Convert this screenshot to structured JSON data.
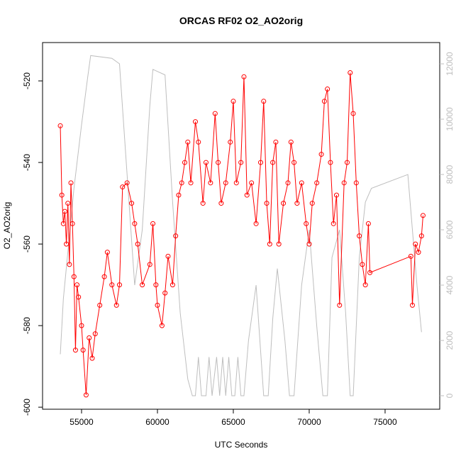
{
  "chart_data": {
    "type": "line",
    "title": "ORCAS RF02 O2_AO2orig",
    "x_label": "UTC Seconds",
    "y_label": "O2_AO2orig",
    "xlim": [
      52430,
      78600
    ],
    "xticks": [
      55000,
      60000,
      65000,
      70000,
      75000
    ],
    "ylim": [
      -600.5,
      -510.6
    ],
    "yticks": [
      -600,
      -580,
      -560,
      -540,
      -520
    ],
    "y2lim": [
      -487,
      12770
    ],
    "y2ticks": [
      0,
      2000,
      4000,
      6000,
      8000,
      10000,
      12000
    ],
    "series": [
      {
        "color": "#bebebe",
        "axis": "y2",
        "markers": false,
        "x": [
          53600,
          53800,
          54500,
          55000,
          55400,
          55600,
          57000,
          57500,
          58000,
          58500,
          59000,
          59500,
          59700,
          60500,
          61000,
          61500,
          62000,
          62300,
          62500,
          62700,
          62900,
          63200,
          63400,
          63600,
          63900,
          64100,
          64300,
          64500,
          64700,
          64900,
          65100,
          65300,
          65500,
          65700,
          66000,
          66500,
          67000,
          67300,
          67600,
          67900,
          68400,
          68700,
          69000,
          69500,
          70000,
          70500,
          70900,
          71200,
          71500,
          72000,
          72400,
          72700,
          72900,
          73300,
          73700,
          74100,
          76500,
          77100,
          77400
        ],
        "values": [
          1500,
          3500,
          7500,
          9800,
          11500,
          12300,
          12200,
          12000,
          8000,
          4000,
          6000,
          10500,
          11800,
          11600,
          7000,
          3000,
          600,
          0,
          0,
          1400,
          0,
          0,
          1400,
          0,
          1400,
          0,
          1400,
          0,
          1400,
          0,
          0,
          1400,
          0,
          0,
          2000,
          4000,
          0,
          0,
          2800,
          4600,
          2000,
          0,
          0,
          4000,
          6000,
          2500,
          0,
          0,
          5000,
          6000,
          3000,
          0,
          0,
          5000,
          7000,
          7500,
          8000,
          4000,
          2300
        ]
      },
      {
        "color": "#ff0000",
        "axis": "y",
        "markers": true,
        "x": [
          53600,
          53700,
          53800,
          53900,
          54000,
          54100,
          54200,
          54300,
          54400,
          54500,
          54600,
          54700,
          54800,
          55000,
          55100,
          55300,
          55500,
          55700,
          55900,
          56200,
          56500,
          56700,
          57000,
          57300,
          57500,
          57700,
          58000,
          58300,
          58500,
          58700,
          59000,
          59500,
          59700,
          59900,
          60000,
          60300,
          60500,
          60700,
          61000,
          61200,
          61400,
          61600,
          61800,
          62000,
          62200,
          62500,
          62700,
          63000,
          63200,
          63500,
          63800,
          64000,
          64200,
          64500,
          64800,
          65000,
          65200,
          65500,
          65700,
          65900,
          66200,
          66500,
          66800,
          67000,
          67200,
          67400,
          67600,
          67800,
          68000,
          68300,
          68600,
          68800,
          69000,
          69200,
          69500,
          69800,
          70000,
          70200,
          70500,
          70800,
          71000,
          71200,
          71400,
          71600,
          71800,
          72000,
          72300,
          72500,
          72700,
          72900,
          73100,
          73300,
          73500,
          73700,
          73900,
          74000,
          76700,
          76800,
          77000,
          77200,
          77400,
          77500
        ],
        "values": [
          -531,
          -548,
          -555,
          -552,
          -560,
          -550,
          -565,
          -545,
          -555,
          -568,
          -586,
          -570,
          -573,
          -580,
          -586,
          -597,
          -583,
          -588,
          -582,
          -575,
          -568,
          -562,
          -570,
          -575,
          -570,
          -546,
          -545,
          -550,
          -555,
          -560,
          -570,
          -565,
          -555,
          -570,
          -575,
          -580,
          -572,
          -563,
          -570,
          -558,
          -548,
          -545,
          -540,
          -535,
          -545,
          -530,
          -535,
          -550,
          -540,
          -545,
          -528,
          -540,
          -550,
          -545,
          -535,
          -525,
          -545,
          -540,
          -519,
          -548,
          -545,
          -555,
          -540,
          -525,
          -550,
          -560,
          -540,
          -535,
          -560,
          -550,
          -545,
          -535,
          -540,
          -550,
          -545,
          -555,
          -560,
          -550,
          -545,
          -538,
          -525,
          -522,
          -540,
          -555,
          -548,
          -575,
          -545,
          -540,
          -518,
          -528,
          -545,
          -558,
          -565,
          -570,
          -555,
          -567,
          -563,
          -575,
          -560,
          -562,
          -558,
          -553
        ]
      }
    ]
  }
}
